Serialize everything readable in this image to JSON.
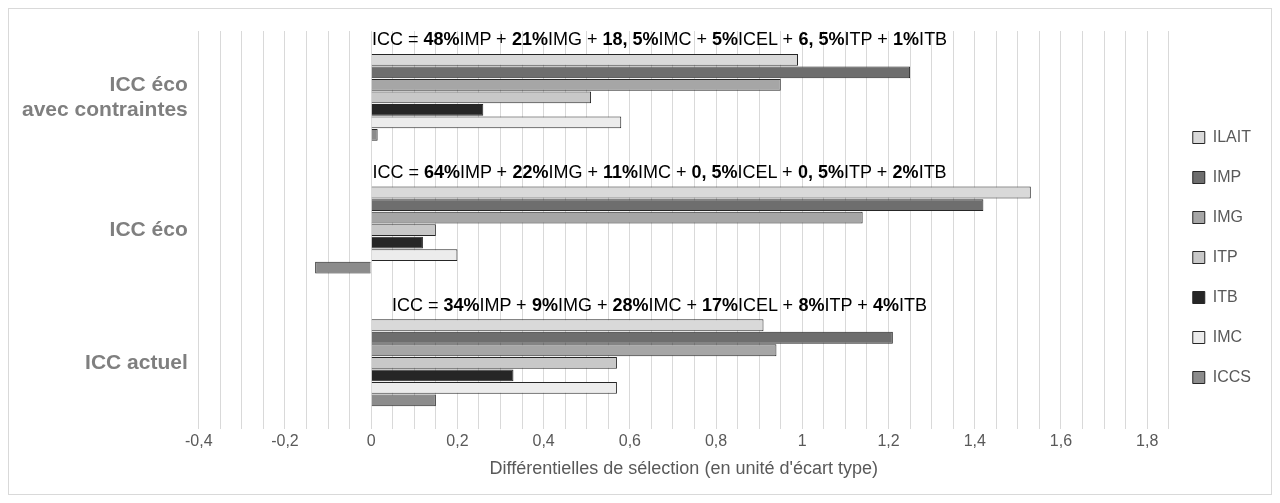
{
  "chart_data": {
    "type": "bar",
    "orientation": "horizontal",
    "xlabel": "Différentielles de sélection (en unité d'écart type)",
    "categories": [
      "ICC éco\navec contraintes",
      "ICC éco",
      "ICC actuel"
    ],
    "series": [
      {
        "name": "ILAIT",
        "color": "#d9d9d9",
        "values": [
          0.99,
          1.53,
          0.91
        ]
      },
      {
        "name": "IMP",
        "color": "#6e6e6e",
        "values": [
          1.25,
          1.42,
          1.21
        ]
      },
      {
        "name": "IMG",
        "color": "#a6a6a6",
        "values": [
          0.95,
          1.14,
          0.94
        ]
      },
      {
        "name": "ITP",
        "color": "#c8c8c8",
        "values": [
          0.51,
          0.15,
          0.57
        ]
      },
      {
        "name": "ITB",
        "color": "#262626",
        "values": [
          0.26,
          0.12,
          0.33
        ]
      },
      {
        "name": "IMC",
        "color": "#ececec",
        "values": [
          0.58,
          0.2,
          0.57
        ]
      },
      {
        "name": "ICCS",
        "color": "#8c8c8c",
        "values": [
          0.015,
          -0.13,
          0.15
        ]
      }
    ],
    "xlim": [
      -0.4,
      1.85
    ],
    "xticks": [
      {
        "value": -0.4,
        "label": "-0,4"
      },
      {
        "value": -0.35,
        "label": null
      },
      {
        "value": -0.3,
        "label": null
      },
      {
        "value": -0.25,
        "label": null
      },
      {
        "value": -0.2,
        "label": "-0,2"
      },
      {
        "value": -0.15,
        "label": null
      },
      {
        "value": -0.1,
        "label": null
      },
      {
        "value": -0.05,
        "label": null
      },
      {
        "value": 0,
        "label": "0"
      },
      {
        "value": 0.05,
        "label": null
      },
      {
        "value": 0.1,
        "label": null
      },
      {
        "value": 0.15,
        "label": null
      },
      {
        "value": 0.2,
        "label": "0,2"
      },
      {
        "value": 0.25,
        "label": null
      },
      {
        "value": 0.3,
        "label": null
      },
      {
        "value": 0.35,
        "label": null
      },
      {
        "value": 0.4,
        "label": "0,4"
      },
      {
        "value": 0.45,
        "label": null
      },
      {
        "value": 0.5,
        "label": null
      },
      {
        "value": 0.55,
        "label": null
      },
      {
        "value": 0.6,
        "label": "0,6"
      },
      {
        "value": 0.65,
        "label": null
      },
      {
        "value": 0.7,
        "label": null
      },
      {
        "value": 0.75,
        "label": null
      },
      {
        "value": 0.8,
        "label": "0,8"
      },
      {
        "value": 0.85,
        "label": null
      },
      {
        "value": 0.9,
        "label": null
      },
      {
        "value": 0.95,
        "label": null
      },
      {
        "value": 1,
        "label": "1"
      },
      {
        "value": 1.05,
        "label": null
      },
      {
        "value": 1.1,
        "label": null
      },
      {
        "value": 1.15,
        "label": null
      },
      {
        "value": 1.2,
        "label": "1,2"
      },
      {
        "value": 1.25,
        "label": null
      },
      {
        "value": 1.3,
        "label": null
      },
      {
        "value": 1.35,
        "label": null
      },
      {
        "value": 1.4,
        "label": "1,4"
      },
      {
        "value": 1.45,
        "label": null
      },
      {
        "value": 1.5,
        "label": null
      },
      {
        "value": 1.55,
        "label": null
      },
      {
        "value": 1.6,
        "label": "1,6"
      },
      {
        "value": 1.65,
        "label": null
      },
      {
        "value": 1.7,
        "label": null
      },
      {
        "value": 1.75,
        "label": null
      },
      {
        "value": 1.8,
        "label": "1,8"
      },
      {
        "value": 1.85,
        "label": null
      }
    ],
    "annotations": [
      "ICC = 48%IMP + 21%IMG + 18, 5%IMC + 5%ICEL + 6, 5%ITP + 1%ITB",
      "ICC = 64%IMP + 22%IMG + 11%IMC + 0, 5%ICEL + 0, 5%ITP + 2%ITB",
      "ICC = 34%IMP + 9%IMG + 28%IMC + 17%ICEL + 8%ITP + 4%ITB"
    ],
    "grid": "x",
    "legend": "right"
  }
}
